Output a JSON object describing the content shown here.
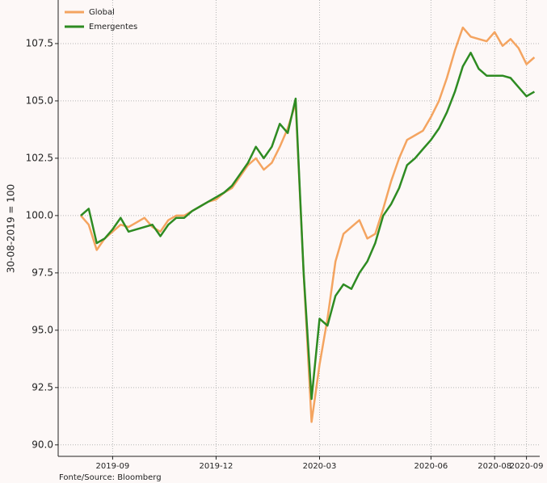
{
  "chart_data": {
    "type": "line",
    "y_axis_label": "30-08-2019 = 100",
    "source": "Fonte/Source: Bloomberg",
    "categories": [
      null,
      null,
      null,
      null,
      "2019-09",
      null,
      null,
      null,
      null,
      null,
      null,
      null,
      null,
      null,
      null,
      null,
      null,
      "2019-12",
      null,
      null,
      null,
      null,
      null,
      null,
      null,
      null,
      null,
      null,
      null,
      null,
      "2020-03",
      null,
      null,
      null,
      null,
      null,
      null,
      null,
      null,
      null,
      null,
      null,
      null,
      null,
      "2020-06",
      null,
      null,
      null,
      null,
      null,
      null,
      null,
      "2020-08",
      null,
      null,
      null,
      "2020-09",
      null
    ],
    "series": [
      {
        "name": "Global",
        "color": "#f4a460",
        "values": [
          100.0,
          99.6,
          98.5,
          99.0,
          99.3,
          99.6,
          99.5,
          99.7,
          99.9,
          99.5,
          99.3,
          99.8,
          100.0,
          100.0,
          100.2,
          100.4,
          100.6,
          100.7,
          101.0,
          101.2,
          101.7,
          102.2,
          102.5,
          102.0,
          102.3,
          103.0,
          103.8,
          104.9,
          97.5,
          91.0,
          93.5,
          95.5,
          98.0,
          99.2,
          99.5,
          99.8,
          99.0,
          99.2,
          100.3,
          101.5,
          102.5,
          103.3,
          103.5,
          103.7,
          104.3,
          105.0,
          106.0,
          107.2,
          108.2,
          107.8,
          107.7,
          107.6,
          108.0,
          107.4,
          107.7,
          107.3,
          106.6,
          106.9
        ]
      },
      {
        "name": "Emergentes",
        "color": "#2e8b22",
        "values": [
          100.0,
          100.3,
          98.8,
          99.0,
          99.4,
          99.9,
          99.3,
          99.4,
          99.5,
          99.6,
          99.1,
          99.6,
          99.9,
          99.9,
          100.2,
          100.4,
          100.6,
          100.8,
          101.0,
          101.3,
          101.8,
          102.3,
          103.0,
          102.5,
          103.0,
          104.0,
          103.6,
          105.1,
          97.5,
          92.0,
          95.5,
          95.2,
          96.5,
          97.0,
          96.8,
          97.5,
          98.0,
          98.8,
          100.0,
          100.5,
          101.2,
          102.2,
          102.5,
          102.9,
          103.3,
          103.8,
          104.5,
          105.4,
          106.5,
          107.1,
          106.4,
          106.1,
          106.1,
          106.1,
          106.0,
          105.6,
          105.2,
          105.4
        ]
      }
    ],
    "ylim": [
      89.5,
      109.4
    ],
    "yticks": [
      {
        "value": 90,
        "label": "90.0"
      },
      92.5,
      {
        "value": 95,
        "label": "95.0"
      },
      97.5,
      {
        "value": 100,
        "label": "100.0"
      },
      102.5,
      {
        "value": 105,
        "label": "105.0"
      },
      107.5
    ],
    "grid": true
  }
}
